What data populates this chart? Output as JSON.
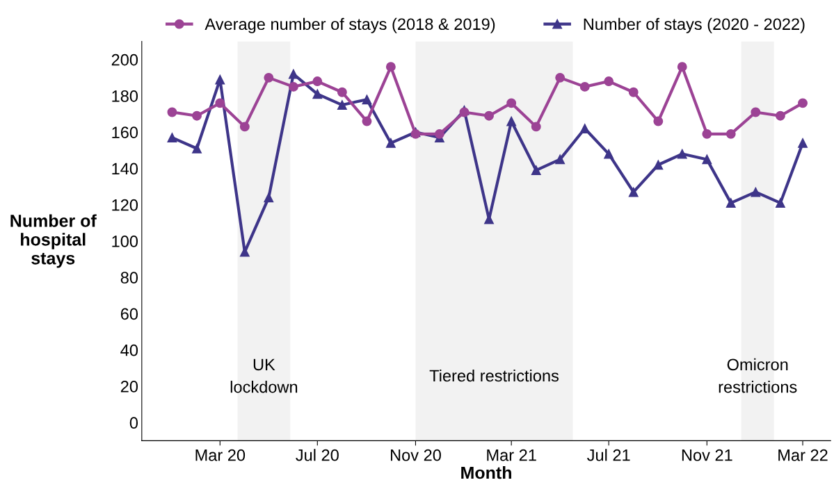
{
  "chart_data": {
    "type": "line",
    "xlabel": "Month",
    "ylabel": "Number of\nhospital\nstays",
    "x": [
      "2020-01",
      "2020-02",
      "2020-03",
      "2020-04",
      "2020-05",
      "2020-06",
      "2020-07",
      "2020-08",
      "2020-09",
      "2020-10",
      "2020-11",
      "2020-12",
      "2021-01",
      "2021-02",
      "2021-03",
      "2021-04",
      "2021-05",
      "2021-06",
      "2021-07",
      "2021-08",
      "2021-09",
      "2021-10",
      "2021-11",
      "2021-12",
      "2022-01",
      "2022-02",
      "2022-03"
    ],
    "series": [
      {
        "name": "Average number of stays (2018 & 2019)",
        "color": "#9c4395",
        "marker": "circle",
        "values": [
          171,
          169,
          176,
          163,
          190,
          185,
          188,
          182,
          166,
          196,
          159,
          159,
          171,
          169,
          176,
          163,
          190,
          185,
          188,
          182,
          166,
          196,
          159,
          159,
          171,
          169,
          176
        ]
      },
      {
        "name": "Number of stays (2020 - 2022)",
        "color": "#3e3589",
        "marker": "triangle",
        "values": [
          157,
          151,
          189,
          94,
          124,
          192,
          181,
          175,
          178,
          154,
          160,
          157,
          172,
          112,
          166,
          139,
          145,
          162,
          148,
          127,
          142,
          148,
          145,
          121,
          127,
          121,
          154
        ]
      }
    ],
    "xlim": [
      "2019-11-24",
      "2022-04-05"
    ],
    "xticks": [
      {
        "value": "2020-03",
        "label": "Mar 20"
      },
      {
        "value": "2020-07",
        "label": "Jul 20"
      },
      {
        "value": "2020-11",
        "label": "Nov 20"
      },
      {
        "value": "2021-03",
        "label": "Mar 21"
      },
      {
        "value": "2021-07",
        "label": "Jul 21"
      },
      {
        "value": "2021-11",
        "label": "Nov 21"
      },
      {
        "value": "2022-03",
        "label": "Mar 22"
      }
    ],
    "ylim": [
      -10,
      210
    ],
    "yticks": [
      0,
      20,
      40,
      60,
      80,
      100,
      120,
      140,
      160,
      180,
      200
    ],
    "bands": [
      {
        "axis": "x",
        "from": "2020-03-23",
        "to": "2020-05-28",
        "label": "UK\nlockdown",
        "color": "#f2f2f2"
      },
      {
        "axis": "x",
        "from": "2020-11-01",
        "to": "2021-05-17",
        "label": "Tiered restrictions",
        "color": "#f2f2f2"
      },
      {
        "axis": "x",
        "from": "2021-12-14",
        "to": "2022-01-24",
        "label": "Omicron\nrestrictions",
        "color": "#f2f2f2"
      }
    ],
    "grid": false,
    "legend": "top",
    "line_style": "solid"
  }
}
